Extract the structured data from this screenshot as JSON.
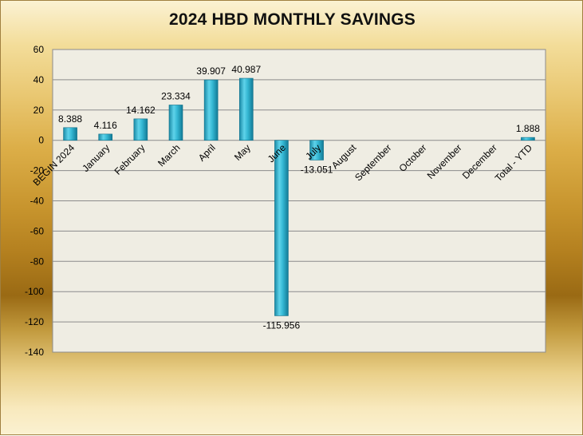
{
  "chart_data": {
    "type": "bar",
    "title": "2024 HBD MONTHLY SAVINGS",
    "xlabel": "",
    "ylabel": "",
    "ylim": [
      -140,
      60
    ],
    "yticks": [
      60,
      40,
      20,
      0,
      -20,
      -40,
      -60,
      -80,
      -100,
      -120,
      -140
    ],
    "categories": [
      "BEGIN 2024",
      "January",
      "February",
      "March",
      "April",
      "May",
      "June",
      "July",
      "August",
      "September",
      "October",
      "November",
      "December",
      "Total - YTD"
    ],
    "values": [
      8.388,
      4.116,
      14.162,
      23.334,
      39.907,
      40.987,
      -115.956,
      -13.051,
      null,
      null,
      null,
      null,
      null,
      1.888
    ],
    "data_labels": [
      "8.388",
      "4.116",
      "14.162",
      "23.334",
      "39.907",
      "40.987",
      "-115.956",
      "-13.051",
      "",
      "",
      "",
      "",
      "",
      "1.888"
    ],
    "grid": true,
    "legend": "none",
    "bar_color": "#2eb3cf"
  }
}
